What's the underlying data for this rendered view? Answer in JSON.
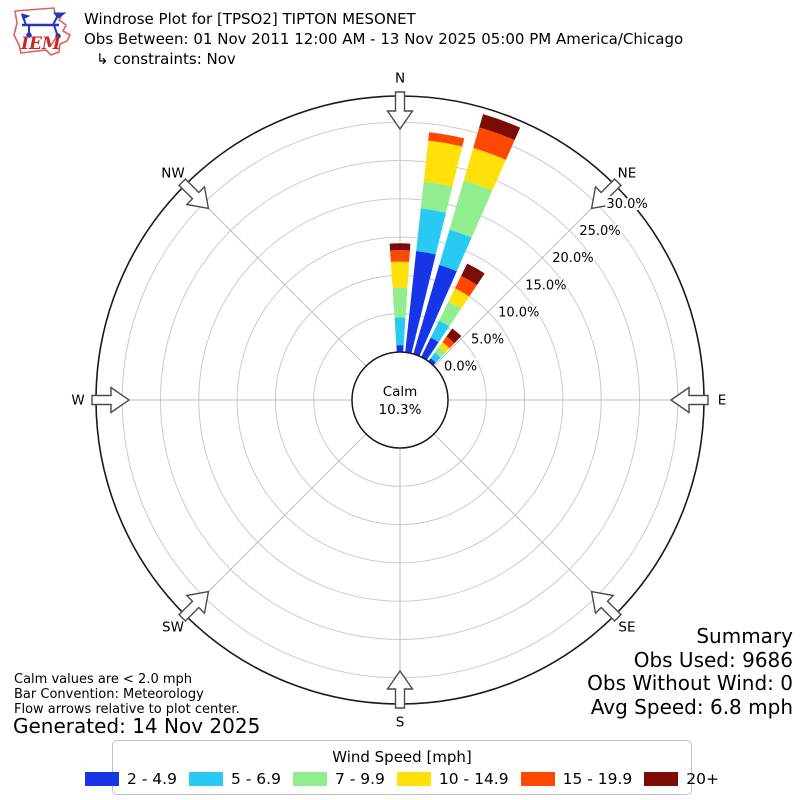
{
  "header": {
    "title": "Windrose Plot for [TPSO2] TIPTON MESONET",
    "obs_between": "Obs Between: 01 Nov 2011 12:00 AM - 13 Nov 2025 05:00 PM America/Chicago",
    "constraints": "↳ constraints: Nov"
  },
  "logo": {
    "text": "IEM"
  },
  "summary": {
    "title": "Summary",
    "obs_used": "Obs Used: 9686",
    "obs_without_wind": "Obs Without Wind: 0",
    "avg_speed": "Avg Speed: 6.8 mph"
  },
  "notes": {
    "calm_note": "Calm values are < 2.0 mph",
    "convention_note": "Bar Convention: Meteorology",
    "arrows_note": "Flow arrows relative to plot center.",
    "generated": "Generated: 14 Nov 2025"
  },
  "legend": {
    "title": "Wind Speed [mph]"
  },
  "chart_data": {
    "type": "windrose",
    "title": "Windrose Plot for [TPSO2] TIPTON MESONET",
    "units": "mph",
    "grid": true,
    "legend_position": "bottom",
    "calm": {
      "label": "Calm",
      "percent": 10.3,
      "percent_label": "10.3%"
    },
    "compass_points": [
      {
        "label": "N",
        "deg": 0
      },
      {
        "label": "NE",
        "deg": 45
      },
      {
        "label": "E",
        "deg": 90
      },
      {
        "label": "SE",
        "deg": 135
      },
      {
        "label": "S",
        "deg": 180
      },
      {
        "label": "SW",
        "deg": 225
      },
      {
        "label": "W",
        "deg": 270
      },
      {
        "label": "NW",
        "deg": 315
      }
    ],
    "radial_ticks": [
      {
        "percent": 0,
        "label": "0.0%"
      },
      {
        "percent": 5,
        "label": "5.0%"
      },
      {
        "percent": 10,
        "label": "10.0%"
      },
      {
        "percent": 15,
        "label": "15.0%"
      },
      {
        "percent": 20,
        "label": "20.0%"
      },
      {
        "percent": 25,
        "label": "25.0%"
      },
      {
        "percent": 30,
        "label": "30.0%"
      }
    ],
    "radial_axis_max_percent": 33.4,
    "speed_bins": [
      {
        "label": "2 - 4.9",
        "color": "#1535e6"
      },
      {
        "label": "5 - 6.9",
        "color": "#28c9f2"
      },
      {
        "label": "7 - 9.9",
        "color": "#90ee90"
      },
      {
        "label": "10 - 14.9",
        "color": "#ffe00a"
      },
      {
        "label": "15 - 19.9",
        "color": "#fd4801"
      },
      {
        "label": "20+",
        "color": "#7b0d05"
      }
    ],
    "bars": [
      {
        "direction_deg": 0,
        "segments_percent": [
          0.9,
          3.6,
          3.9,
          3.4,
          1.5,
          0.9
        ],
        "total_percent": 14.2
      },
      {
        "direction_deg": 10,
        "segments_percent": [
          13.3,
          5.6,
          3.5,
          5.4,
          1.1,
          0.0
        ],
        "total_percent": 28.9
      },
      {
        "direction_deg": 20,
        "segments_percent": [
          12.1,
          4.8,
          6.7,
          4.4,
          2.8,
          1.8
        ],
        "total_percent": 32.6
      },
      {
        "direction_deg": 30,
        "segments_percent": [
          2.8,
          2.5,
          2.8,
          1.9,
          1.8,
          1.8
        ],
        "total_percent": 13.6
      },
      {
        "direction_deg": 40,
        "segments_percent": [
          0.5,
          0.9,
          0.9,
          0.8,
          0.9,
          1.3
        ],
        "total_percent": 5.3
      }
    ]
  }
}
